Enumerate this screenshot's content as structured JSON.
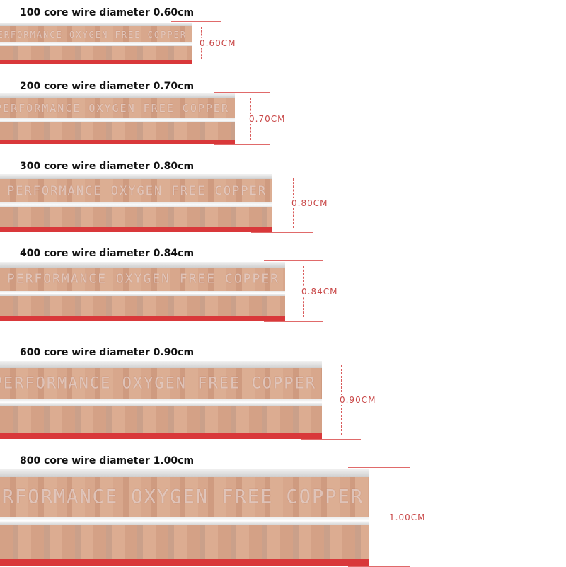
{
  "items": [
    {
      "label": "100 core wire diameter 0.60cm",
      "cable_text": "PERFORMANCE OXYGEN FREE COPPER",
      "dimension": "0.60CM"
    },
    {
      "label": "200 core wire diameter 0.70cm",
      "cable_text": "PERFORMANCE OXYGEN FREE COPPER",
      "dimension": "0.70CM"
    },
    {
      "label": "300 core wire diameter 0.80cm",
      "cable_text": "PERFORMANCE OXYGEN FREE COPPER",
      "dimension": "0.80CM"
    },
    {
      "label": "400 core wire diameter 0.84cm",
      "cable_text": "PERFORMANCE OXYGEN FREE COPPER",
      "dimension": "0.84CM"
    },
    {
      "label": "600 core wire diameter 0.90cm",
      "cable_text": "PERFORMANCE OXYGEN FREE COPPER",
      "dimension": "0.90CM"
    },
    {
      "label": "800 core wire diameter 1.00cm",
      "cable_text": "PERFORMANCE OXYGEN FREE COPPER",
      "dimension": "1.00CM"
    }
  ]
}
